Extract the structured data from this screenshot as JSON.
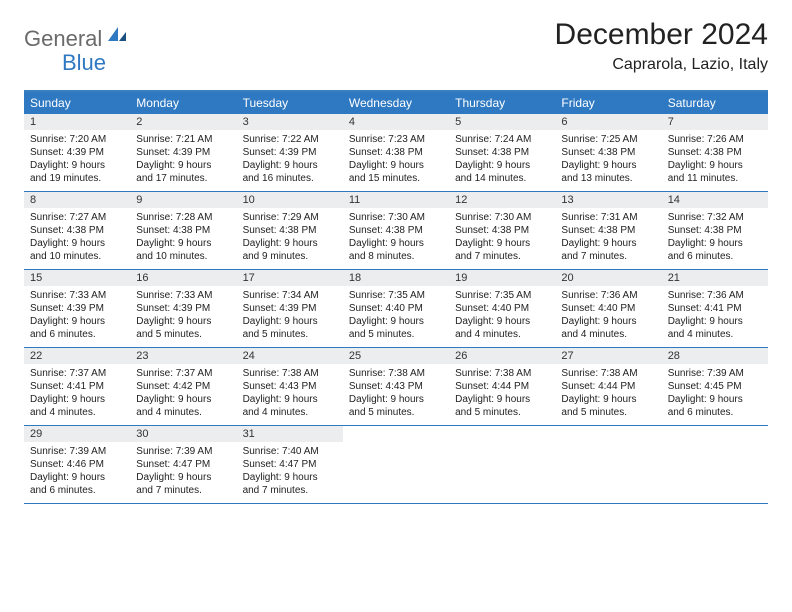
{
  "logo": {
    "general": "General",
    "blue": "Blue"
  },
  "title": "December 2024",
  "location": "Caprarola, Lazio, Italy",
  "colors": {
    "header_bg": "#2f79c2",
    "header_text": "#ffffff",
    "daynum_bg": "#ecedee",
    "border": "#2f79c2",
    "logo_gray": "#6b6b6b",
    "logo_blue": "#2f79c2"
  },
  "day_headers": [
    "Sunday",
    "Monday",
    "Tuesday",
    "Wednesday",
    "Thursday",
    "Friday",
    "Saturday"
  ],
  "weeks": [
    [
      {
        "n": "1",
        "sr": "Sunrise: 7:20 AM",
        "ss": "Sunset: 4:39 PM",
        "dl1": "Daylight: 9 hours",
        "dl2": "and 19 minutes."
      },
      {
        "n": "2",
        "sr": "Sunrise: 7:21 AM",
        "ss": "Sunset: 4:39 PM",
        "dl1": "Daylight: 9 hours",
        "dl2": "and 17 minutes."
      },
      {
        "n": "3",
        "sr": "Sunrise: 7:22 AM",
        "ss": "Sunset: 4:39 PM",
        "dl1": "Daylight: 9 hours",
        "dl2": "and 16 minutes."
      },
      {
        "n": "4",
        "sr": "Sunrise: 7:23 AM",
        "ss": "Sunset: 4:38 PM",
        "dl1": "Daylight: 9 hours",
        "dl2": "and 15 minutes."
      },
      {
        "n": "5",
        "sr": "Sunrise: 7:24 AM",
        "ss": "Sunset: 4:38 PM",
        "dl1": "Daylight: 9 hours",
        "dl2": "and 14 minutes."
      },
      {
        "n": "6",
        "sr": "Sunrise: 7:25 AM",
        "ss": "Sunset: 4:38 PM",
        "dl1": "Daylight: 9 hours",
        "dl2": "and 13 minutes."
      },
      {
        "n": "7",
        "sr": "Sunrise: 7:26 AM",
        "ss": "Sunset: 4:38 PM",
        "dl1": "Daylight: 9 hours",
        "dl2": "and 11 minutes."
      }
    ],
    [
      {
        "n": "8",
        "sr": "Sunrise: 7:27 AM",
        "ss": "Sunset: 4:38 PM",
        "dl1": "Daylight: 9 hours",
        "dl2": "and 10 minutes."
      },
      {
        "n": "9",
        "sr": "Sunrise: 7:28 AM",
        "ss": "Sunset: 4:38 PM",
        "dl1": "Daylight: 9 hours",
        "dl2": "and 10 minutes."
      },
      {
        "n": "10",
        "sr": "Sunrise: 7:29 AM",
        "ss": "Sunset: 4:38 PM",
        "dl1": "Daylight: 9 hours",
        "dl2": "and 9 minutes."
      },
      {
        "n": "11",
        "sr": "Sunrise: 7:30 AM",
        "ss": "Sunset: 4:38 PM",
        "dl1": "Daylight: 9 hours",
        "dl2": "and 8 minutes."
      },
      {
        "n": "12",
        "sr": "Sunrise: 7:30 AM",
        "ss": "Sunset: 4:38 PM",
        "dl1": "Daylight: 9 hours",
        "dl2": "and 7 minutes."
      },
      {
        "n": "13",
        "sr": "Sunrise: 7:31 AM",
        "ss": "Sunset: 4:38 PM",
        "dl1": "Daylight: 9 hours",
        "dl2": "and 7 minutes."
      },
      {
        "n": "14",
        "sr": "Sunrise: 7:32 AM",
        "ss": "Sunset: 4:38 PM",
        "dl1": "Daylight: 9 hours",
        "dl2": "and 6 minutes."
      }
    ],
    [
      {
        "n": "15",
        "sr": "Sunrise: 7:33 AM",
        "ss": "Sunset: 4:39 PM",
        "dl1": "Daylight: 9 hours",
        "dl2": "and 6 minutes."
      },
      {
        "n": "16",
        "sr": "Sunrise: 7:33 AM",
        "ss": "Sunset: 4:39 PM",
        "dl1": "Daylight: 9 hours",
        "dl2": "and 5 minutes."
      },
      {
        "n": "17",
        "sr": "Sunrise: 7:34 AM",
        "ss": "Sunset: 4:39 PM",
        "dl1": "Daylight: 9 hours",
        "dl2": "and 5 minutes."
      },
      {
        "n": "18",
        "sr": "Sunrise: 7:35 AM",
        "ss": "Sunset: 4:40 PM",
        "dl1": "Daylight: 9 hours",
        "dl2": "and 5 minutes."
      },
      {
        "n": "19",
        "sr": "Sunrise: 7:35 AM",
        "ss": "Sunset: 4:40 PM",
        "dl1": "Daylight: 9 hours",
        "dl2": "and 4 minutes."
      },
      {
        "n": "20",
        "sr": "Sunrise: 7:36 AM",
        "ss": "Sunset: 4:40 PM",
        "dl1": "Daylight: 9 hours",
        "dl2": "and 4 minutes."
      },
      {
        "n": "21",
        "sr": "Sunrise: 7:36 AM",
        "ss": "Sunset: 4:41 PM",
        "dl1": "Daylight: 9 hours",
        "dl2": "and 4 minutes."
      }
    ],
    [
      {
        "n": "22",
        "sr": "Sunrise: 7:37 AM",
        "ss": "Sunset: 4:41 PM",
        "dl1": "Daylight: 9 hours",
        "dl2": "and 4 minutes."
      },
      {
        "n": "23",
        "sr": "Sunrise: 7:37 AM",
        "ss": "Sunset: 4:42 PM",
        "dl1": "Daylight: 9 hours",
        "dl2": "and 4 minutes."
      },
      {
        "n": "24",
        "sr": "Sunrise: 7:38 AM",
        "ss": "Sunset: 4:43 PM",
        "dl1": "Daylight: 9 hours",
        "dl2": "and 4 minutes."
      },
      {
        "n": "25",
        "sr": "Sunrise: 7:38 AM",
        "ss": "Sunset: 4:43 PM",
        "dl1": "Daylight: 9 hours",
        "dl2": "and 5 minutes."
      },
      {
        "n": "26",
        "sr": "Sunrise: 7:38 AM",
        "ss": "Sunset: 4:44 PM",
        "dl1": "Daylight: 9 hours",
        "dl2": "and 5 minutes."
      },
      {
        "n": "27",
        "sr": "Sunrise: 7:38 AM",
        "ss": "Sunset: 4:44 PM",
        "dl1": "Daylight: 9 hours",
        "dl2": "and 5 minutes."
      },
      {
        "n": "28",
        "sr": "Sunrise: 7:39 AM",
        "ss": "Sunset: 4:45 PM",
        "dl1": "Daylight: 9 hours",
        "dl2": "and 6 minutes."
      }
    ],
    [
      {
        "n": "29",
        "sr": "Sunrise: 7:39 AM",
        "ss": "Sunset: 4:46 PM",
        "dl1": "Daylight: 9 hours",
        "dl2": "and 6 minutes."
      },
      {
        "n": "30",
        "sr": "Sunrise: 7:39 AM",
        "ss": "Sunset: 4:47 PM",
        "dl1": "Daylight: 9 hours",
        "dl2": "and 7 minutes."
      },
      {
        "n": "31",
        "sr": "Sunrise: 7:40 AM",
        "ss": "Sunset: 4:47 PM",
        "dl1": "Daylight: 9 hours",
        "dl2": "and 7 minutes."
      },
      null,
      null,
      null,
      null
    ]
  ]
}
